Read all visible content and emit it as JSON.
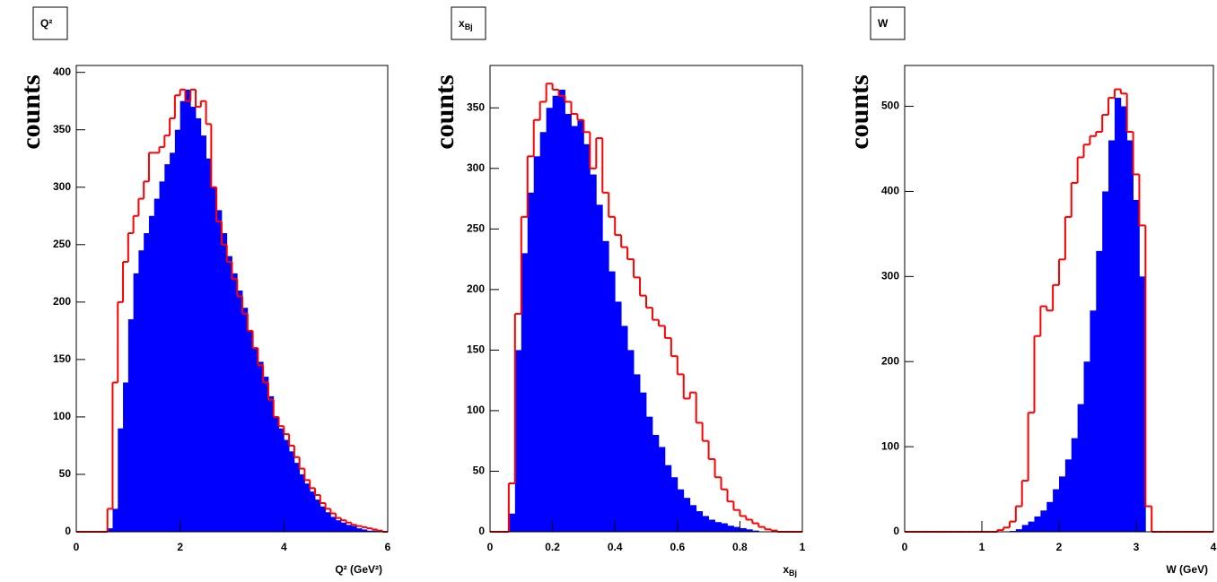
{
  "chart_data": [
    {
      "type": "histogram",
      "title": "Q²",
      "ylabel": "counts",
      "xlabel": "Q² (GeV²)",
      "xlim": [
        0,
        6
      ],
      "xticks": [
        0,
        2,
        4,
        6
      ],
      "ylim": [
        0,
        406
      ],
      "yticks": [
        0,
        50,
        100,
        150,
        200,
        250,
        300,
        350,
        400
      ],
      "bins": [
        0,
        0.1,
        0.2,
        0.3,
        0.4,
        0.5,
        0.6,
        0.7,
        0.8,
        0.9,
        1,
        1.1,
        1.2,
        1.3,
        1.4,
        1.5,
        1.6,
        1.7,
        1.8,
        1.9,
        2,
        2.1,
        2.2,
        2.3,
        2.4,
        2.5,
        2.6,
        2.7,
        2.8,
        2.9,
        3,
        3.1,
        3.2,
        3.3,
        3.4,
        3.5,
        3.6,
        3.7,
        3.8,
        3.9,
        4,
        4.1,
        4.2,
        4.3,
        4.4,
        4.5,
        4.6,
        4.7,
        4.8,
        4.9,
        5,
        5.1,
        5.2,
        5.3,
        5.4,
        5.5,
        5.6,
        5.7,
        5.8,
        5.9,
        6
      ],
      "series": [
        {
          "color": "#0000ff",
          "style": "filled",
          "values": [
            0,
            0,
            0,
            0,
            0,
            0,
            3,
            20,
            90,
            130,
            185,
            225,
            245,
            260,
            275,
            290,
            305,
            320,
            330,
            350,
            375,
            385,
            370,
            360,
            345,
            325,
            300,
            280,
            260,
            240,
            225,
            210,
            195,
            175,
            160,
            148,
            135,
            118,
            100,
            90,
            80,
            70,
            60,
            50,
            42,
            35,
            28,
            22,
            17,
            13,
            10,
            8,
            6,
            5,
            3,
            2,
            1,
            1,
            0,
            0
          ]
        },
        {
          "color": "#ff0000",
          "style": "step",
          "values": [
            0,
            0,
            0,
            0,
            0,
            0,
            20,
            130,
            200,
            235,
            260,
            275,
            290,
            305,
            330,
            330,
            335,
            345,
            360,
            380,
            385,
            375,
            385,
            370,
            375,
            355,
            300,
            270,
            250,
            235,
            220,
            205,
            190,
            175,
            160,
            145,
            130,
            115,
            100,
            92,
            85,
            75,
            65,
            55,
            45,
            38,
            32,
            25,
            20,
            16,
            12,
            10,
            8,
            6,
            5,
            4,
            3,
            2,
            1,
            0
          ]
        }
      ]
    },
    {
      "type": "histogram",
      "title": "x",
      "title_subscript": "Bj",
      "ylabel": "counts",
      "xlabel": "x",
      "xlabel_subscript": "Bj",
      "xlim": [
        0,
        1
      ],
      "xticks": [
        0,
        0.2,
        0.4,
        0.6,
        0.8,
        1
      ],
      "ylim": [
        0,
        385
      ],
      "yticks": [
        0,
        50,
        100,
        150,
        200,
        250,
        300,
        350
      ],
      "bins": [
        0,
        0.02,
        0.04,
        0.06,
        0.08,
        0.1,
        0.12,
        0.14,
        0.16,
        0.18,
        0.2,
        0.22,
        0.24,
        0.26,
        0.28,
        0.3,
        0.32,
        0.34,
        0.36,
        0.38,
        0.4,
        0.42,
        0.44,
        0.46,
        0.48,
        0.5,
        0.52,
        0.54,
        0.56,
        0.58,
        0.6,
        0.62,
        0.64,
        0.66,
        0.68,
        0.7,
        0.72,
        0.74,
        0.76,
        0.78,
        0.8,
        0.82,
        0.84,
        0.86,
        0.88,
        0.9,
        0.92,
        0.94,
        0.96,
        0.98,
        1
      ],
      "series": [
        {
          "color": "#0000ff",
          "style": "filled",
          "values": [
            0,
            0,
            0,
            15,
            150,
            230,
            280,
            310,
            330,
            350,
            360,
            365,
            345,
            335,
            340,
            320,
            295,
            270,
            240,
            215,
            190,
            170,
            150,
            130,
            115,
            95,
            80,
            70,
            55,
            45,
            35,
            28,
            22,
            17,
            13,
            10,
            8,
            7,
            5,
            4,
            3,
            2,
            1,
            0,
            0,
            0,
            0,
            0,
            0,
            0
          ]
        },
        {
          "color": "#ff0000",
          "style": "step",
          "values": [
            0,
            0,
            0,
            40,
            180,
            260,
            310,
            340,
            355,
            370,
            365,
            360,
            355,
            345,
            340,
            330,
            300,
            325,
            280,
            260,
            245,
            235,
            225,
            210,
            195,
            185,
            175,
            170,
            160,
            145,
            130,
            110,
            115,
            90,
            75,
            60,
            45,
            35,
            25,
            18,
            13,
            10,
            7,
            4,
            2,
            1,
            0,
            0,
            0,
            0
          ]
        }
      ]
    },
    {
      "type": "histogram",
      "title": "W",
      "ylabel": "counts",
      "xlabel": "W (GeV)",
      "xlim": [
        0,
        4
      ],
      "xticks": [
        0,
        1,
        2,
        3,
        4
      ],
      "ylim": [
        0,
        548
      ],
      "yticks": [
        0,
        100,
        200,
        300,
        400,
        500
      ],
      "bins": [
        0,
        0.08,
        0.16,
        0.24,
        0.32,
        0.4,
        0.48,
        0.56,
        0.64,
        0.72,
        0.8,
        0.88,
        0.96,
        1.04,
        1.12,
        1.2,
        1.28,
        1.36,
        1.44,
        1.52,
        1.6,
        1.68,
        1.76,
        1.84,
        1.92,
        2,
        2.08,
        2.16,
        2.24,
        2.32,
        2.4,
        2.48,
        2.56,
        2.64,
        2.72,
        2.8,
        2.88,
        2.96,
        3.04,
        3.12,
        3.2,
        3.28,
        3.36,
        3.44,
        3.52,
        3.6,
        3.68,
        3.76,
        3.84,
        3.92,
        4
      ],
      "series": [
        {
          "color": "#0000ff",
          "style": "filled",
          "values": [
            0,
            0,
            0,
            0,
            0,
            0,
            0,
            0,
            0,
            0,
            0,
            0,
            0,
            0,
            0,
            0,
            0,
            1,
            3,
            8,
            12,
            18,
            25,
            35,
            50,
            65,
            85,
            110,
            150,
            200,
            260,
            330,
            400,
            460,
            510,
            500,
            460,
            390,
            300,
            0,
            0,
            0,
            0,
            0,
            0,
            0,
            0,
            0,
            0,
            0
          ]
        },
        {
          "color": "#ff0000",
          "style": "step",
          "values": [
            0,
            0,
            0,
            0,
            0,
            0,
            0,
            0,
            0,
            0,
            0,
            0,
            0,
            0,
            0,
            2,
            5,
            12,
            30,
            60,
            140,
            230,
            265,
            260,
            290,
            320,
            370,
            410,
            440,
            455,
            465,
            470,
            490,
            510,
            520,
            515,
            470,
            420,
            360,
            30,
            0,
            0,
            0,
            0,
            0,
            0,
            0,
            0,
            0,
            0
          ]
        }
      ]
    }
  ]
}
